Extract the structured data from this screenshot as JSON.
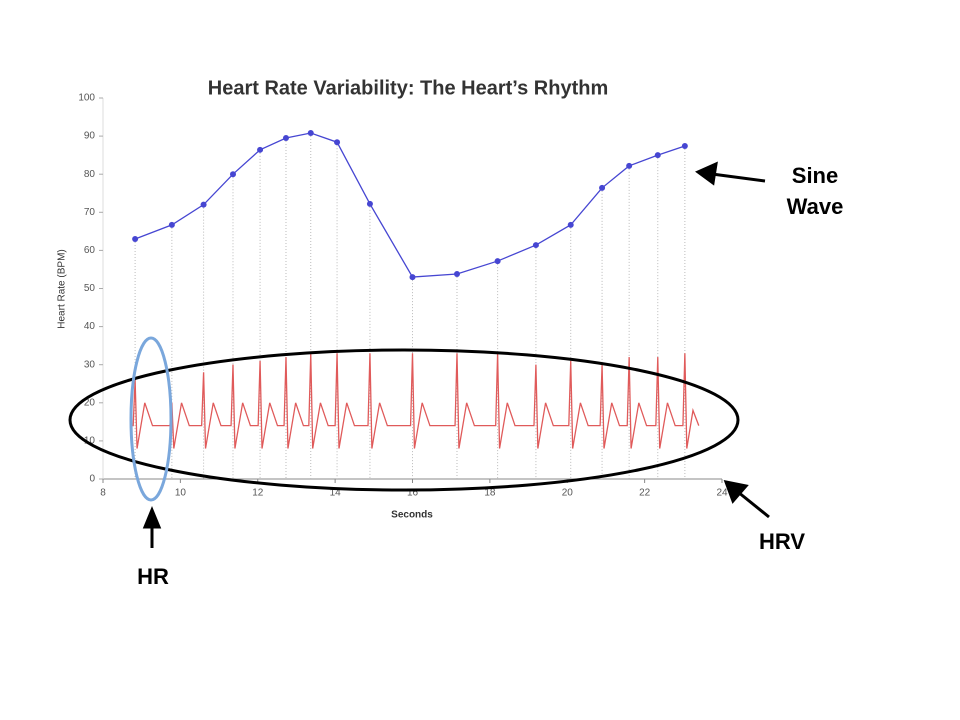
{
  "chart_data": {
    "type": "line",
    "title": "Heart Rate Variability: The Heart’s Rhythm",
    "xlabel": "Seconds",
    "ylabel": "Heart Rate (BPM)",
    "xlim": [
      8,
      24
    ],
    "ylim": [
      0,
      100
    ],
    "xticks": [
      8,
      10,
      12,
      14,
      16,
      18,
      20,
      22,
      24
    ],
    "yticks": [
      0,
      10,
      20,
      30,
      40,
      50,
      60,
      70,
      80,
      90,
      100
    ],
    "series": [
      {
        "color": "#4646d2",
        "markers": true,
        "droplines": true,
        "x": [
          8.83,
          9.78,
          10.6,
          11.36,
          12.06,
          12.73,
          13.37,
          14.05,
          14.9,
          16.0,
          17.15,
          18.2,
          19.19,
          20.09,
          20.9,
          21.6,
          22.34,
          23.04
        ],
        "values": [
          63,
          66.7,
          72,
          80,
          86.4,
          89.5,
          90.8,
          88.4,
          72.2,
          53,
          53.8,
          57.2,
          61.4,
          66.7,
          76.4,
          82.2,
          85,
          87.4
        ]
      },
      {
        "color": "#e05a5a",
        "markers": false,
        "droplines": false,
        "x": [
          8.7,
          8.78,
          8.83,
          8.88,
          9.08,
          9.28,
          9.73,
          9.78,
          9.83,
          10.03,
          10.23,
          10.55,
          10.6,
          10.65,
          10.85,
          11.05,
          11.31,
          11.36,
          11.41,
          11.61,
          11.81,
          12.01,
          12.06,
          12.11,
          12.31,
          12.51,
          12.68,
          12.73,
          12.78,
          12.98,
          13.18,
          13.32,
          13.37,
          13.42,
          13.62,
          13.82,
          14.0,
          14.05,
          14.1,
          14.3,
          14.5,
          14.85,
          14.9,
          14.95,
          15.15,
          15.35,
          15.95,
          16.0,
          16.05,
          16.25,
          16.45,
          17.1,
          17.15,
          17.2,
          17.4,
          17.6,
          18.15,
          18.2,
          18.25,
          18.45,
          18.65,
          19.14,
          19.19,
          19.24,
          19.44,
          19.64,
          20.04,
          20.09,
          20.14,
          20.34,
          20.54,
          20.85,
          20.9,
          20.95,
          21.15,
          21.35,
          21.55,
          21.6,
          21.65,
          21.85,
          22.05,
          22.29,
          22.34,
          22.39,
          22.59,
          22.79,
          22.99,
          23.04,
          23.09,
          23.25,
          23.4
        ],
        "values": [
          14,
          14,
          26,
          8,
          20,
          14,
          14,
          20,
          8,
          20,
          14,
          14,
          28,
          8,
          20,
          14,
          14,
          30,
          8,
          20,
          14,
          14,
          31,
          8,
          20,
          14,
          14,
          32,
          8,
          20,
          14,
          14,
          33,
          8,
          20,
          14,
          14,
          33,
          8,
          20,
          14,
          14,
          33,
          8,
          20,
          14,
          14,
          33,
          8,
          20,
          14,
          14,
          33,
          8,
          20,
          14,
          14,
          33,
          8,
          20,
          14,
          14,
          30,
          8,
          20,
          14,
          14,
          31,
          8,
          20,
          14,
          14,
          30,
          8,
          20,
          14,
          14,
          32,
          8,
          20,
          14,
          14,
          32,
          8,
          20,
          14,
          14,
          33,
          8,
          18,
          14
        ]
      }
    ],
    "annotations": {
      "sine_wave": [
        "Sine",
        "Wave"
      ],
      "hrv": "HRV",
      "hr": "HR"
    }
  }
}
